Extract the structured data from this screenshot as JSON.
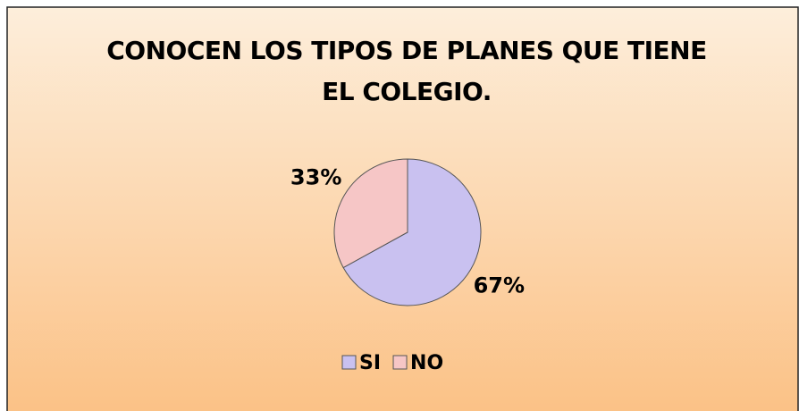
{
  "chart_data": {
    "type": "pie",
    "title": "CONOCEN LOS TIPOS DE PLANES QUE TIENE EL COLEGIO.",
    "categories": [
      "SI",
      "NO"
    ],
    "values": [
      67,
      33
    ],
    "value_labels": [
      "67%",
      "33%"
    ],
    "colors": [
      "#c9c1f0",
      "#f6c6c6"
    ],
    "legend": "bottom"
  }
}
